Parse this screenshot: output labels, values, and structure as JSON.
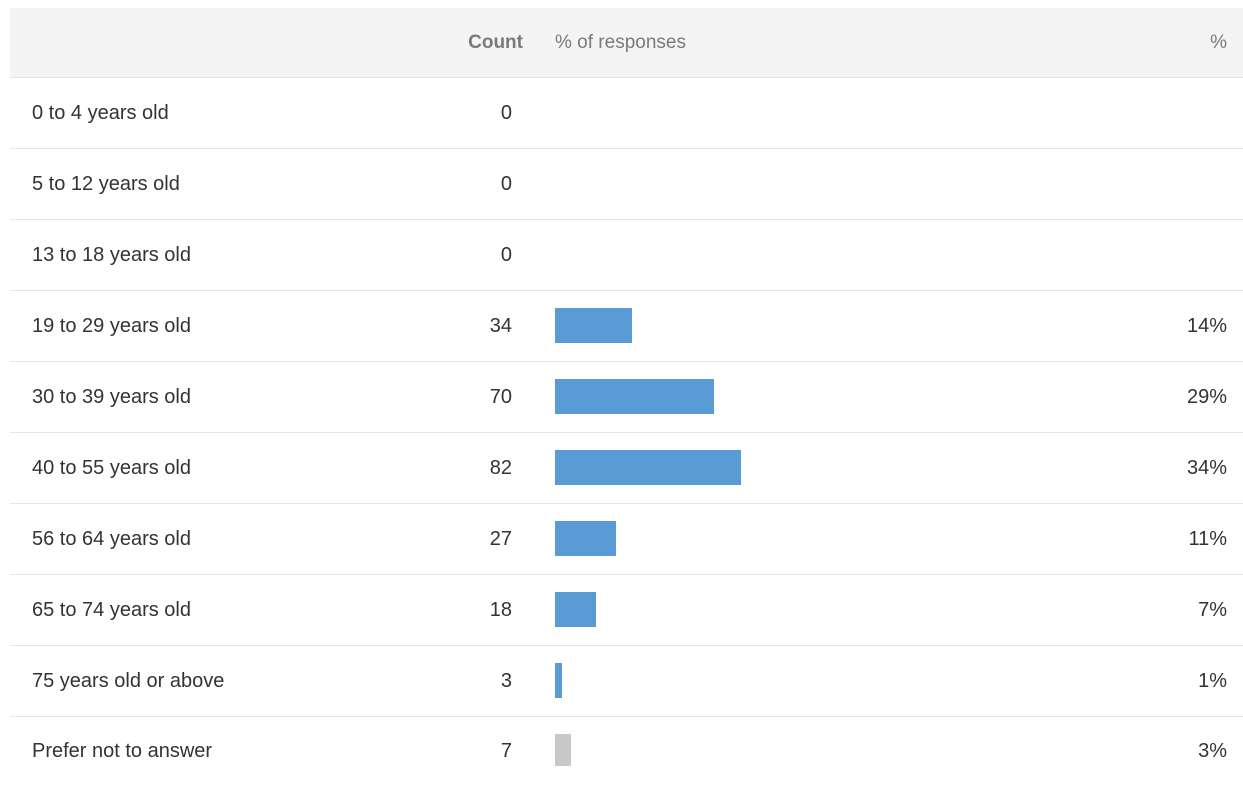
{
  "header": {
    "count_label": "Count",
    "responses_label": "% of responses",
    "percent_label": "%"
  },
  "colors": {
    "bar": "#5b9bd5",
    "bar_muted": "#c8c8c8"
  },
  "chart_data": {
    "type": "bar",
    "orientation": "horizontal",
    "xlim": [
      0,
      82
    ],
    "categories": [
      "0 to 4 years old",
      "5 to 12 years old",
      "13 to 18 years old",
      "19 to 29 years old",
      "30 to 39 years old",
      "40 to 55 years old",
      "56 to 64 years old",
      "65 to 74 years old",
      "75 years old or above",
      "Prefer not to answer"
    ],
    "rows": [
      {
        "label": "0 to 4 years old",
        "count": 0,
        "percent": null,
        "percent_label": "",
        "muted": false
      },
      {
        "label": "5 to 12 years old",
        "count": 0,
        "percent": null,
        "percent_label": "",
        "muted": false
      },
      {
        "label": "13 to 18 years old",
        "count": 0,
        "percent": null,
        "percent_label": "",
        "muted": false
      },
      {
        "label": "19 to 29 years old",
        "count": 34,
        "percent": 14,
        "percent_label": "14%",
        "muted": false
      },
      {
        "label": "30 to 39 years old",
        "count": 70,
        "percent": 29,
        "percent_label": "29%",
        "muted": false
      },
      {
        "label": "40 to 55 years old",
        "count": 82,
        "percent": 34,
        "percent_label": "34%",
        "muted": false
      },
      {
        "label": "56 to 64 years old",
        "count": 27,
        "percent": 11,
        "percent_label": "11%",
        "muted": false
      },
      {
        "label": "65 to 74 years old",
        "count": 18,
        "percent": 7,
        "percent_label": "7%",
        "muted": false
      },
      {
        "label": "75 years old or above",
        "count": 3,
        "percent": 1,
        "percent_label": "1%",
        "muted": false
      },
      {
        "label": "Prefer not to answer",
        "count": 7,
        "percent": 3,
        "percent_label": "3%",
        "muted": true
      }
    ]
  }
}
